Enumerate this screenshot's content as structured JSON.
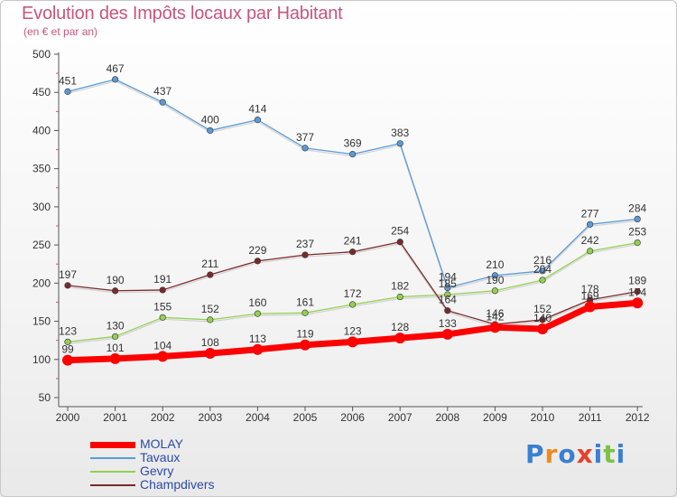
{
  "header": {
    "title": "Evolution des Impôts locaux par Habitant",
    "subtitle": "(en € et par an)"
  },
  "logo": {
    "letters": [
      "P",
      "r",
      "o",
      "x",
      "i",
      "t",
      "i"
    ],
    "colors": [
      "#3a7fd1",
      "#f08a1c",
      "#3a7fd1",
      "#e8402a",
      "#3a7fd1",
      "#7cc243",
      "#3a7fd1"
    ]
  },
  "chart_data": {
    "type": "line",
    "title": "Evolution des Impôts locaux par Habitant",
    "subtitle": "(en € et par an)",
    "categories": [
      "2000",
      "2001",
      "2002",
      "2003",
      "2004",
      "2005",
      "2006",
      "2007",
      "2008",
      "2009",
      "2010",
      "2011",
      "2012"
    ],
    "ylim": [
      50,
      500
    ],
    "yticks": [
      "50",
      "100",
      "150",
      "200",
      "250",
      "300",
      "350",
      "400",
      "450",
      "500"
    ],
    "grid": false,
    "legend_position": "bottom-left",
    "series": [
      {
        "name": "MOLAY",
        "color": "#ff0000",
        "values": [
          99,
          101,
          104,
          108,
          113,
          119,
          123,
          128,
          133,
          142,
          140,
          169,
          174
        ],
        "labels": [
          "99",
          "101",
          "104",
          "108",
          "113",
          "119",
          "123",
          "128",
          "133",
          "142",
          "140",
          "169",
          "174"
        ]
      },
      {
        "name": "Tavaux",
        "color": "#5b9bd5",
        "values": [
          451,
          467,
          437,
          400,
          414,
          377,
          369,
          383,
          194,
          210,
          216,
          277,
          284
        ],
        "labels": [
          "451",
          "467",
          "437",
          "400",
          "414",
          "377",
          "369",
          "383",
          "194",
          "210",
          "216",
          "277",
          "284"
        ]
      },
      {
        "name": "Gevry",
        "color": "#92d050",
        "values": [
          123,
          130,
          155,
          152,
          160,
          161,
          172,
          182,
          185,
          190,
          204,
          242,
          253
        ],
        "labels": [
          "123",
          "130",
          "155",
          "152",
          "160",
          "161",
          "172",
          "182",
          "185",
          "190",
          "204",
          "242",
          "253"
        ]
      },
      {
        "name": "Champdivers",
        "color": "#7b2a2a",
        "values": [
          197,
          190,
          191,
          211,
          229,
          237,
          241,
          254,
          164,
          146,
          152,
          178,
          189
        ],
        "labels": [
          "197",
          "190",
          "191",
          "211",
          "229",
          "237",
          "241",
          "254",
          "164",
          "146",
          "152",
          "178",
          "189"
        ]
      }
    ]
  }
}
